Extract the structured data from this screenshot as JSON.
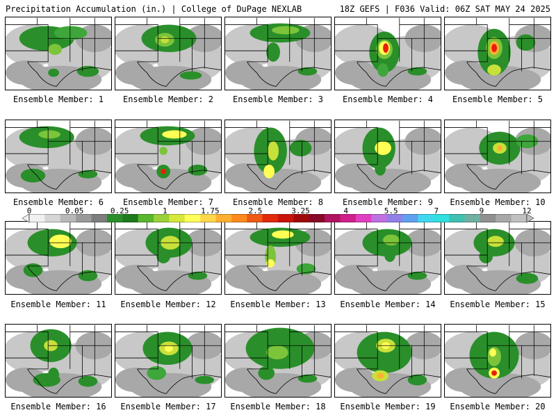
{
  "header": {
    "left": "Precipitation Accumulation (in.) | College of DuPage NEXLAB",
    "right": "18Z GEFS | F036 Valid: 06Z SAT MAY 24 2025"
  },
  "colorbar": {
    "labels": [
      "0",
      "0.05",
      "0.25",
      "1",
      "1.75",
      "2.5",
      "3.25",
      "4",
      "5.5",
      "7",
      "9",
      "12"
    ],
    "colors": [
      "#f0f0f0",
      "#d6d6d6",
      "#b8b8b8",
      "#9a9a9a",
      "#7e7e7e",
      "#2a8f2a",
      "#1e7b1e",
      "#5ab62d",
      "#9bd038",
      "#d6e83a",
      "#ffff5a",
      "#ffd84a",
      "#ffb030",
      "#ff8a1e",
      "#f05a14",
      "#e02a0a",
      "#c8140a",
      "#a00a0a",
      "#880a28",
      "#b01460",
      "#d0208c",
      "#e040c0",
      "#c070e0",
      "#9080e8",
      "#60a0f0",
      "#40d8f0",
      "#30e0e0",
      "#40c0b0",
      "#70b0a0",
      "#909090",
      "#a8a8a8",
      "#c0c0c0"
    ]
  },
  "members": [
    {
      "label": "Ensemble Member: 1"
    },
    {
      "label": "Ensemble Member: 2"
    },
    {
      "label": "Ensemble Member: 3"
    },
    {
      "label": "Ensemble Member: 4"
    },
    {
      "label": "Ensemble Member: 5"
    },
    {
      "label": "Ensemble Member: 6"
    },
    {
      "label": "Ensemble Member: 7"
    },
    {
      "label": "Ensemble Member: 8"
    },
    {
      "label": "Ensemble Member: 9"
    },
    {
      "label": "Ensemble Member: 10"
    },
    {
      "label": "Ensemble Member: 11"
    },
    {
      "label": "Ensemble Member: 12"
    },
    {
      "label": "Ensemble Member: 13"
    },
    {
      "label": "Ensemble Member: 14"
    },
    {
      "label": "Ensemble Member: 15"
    },
    {
      "label": "Ensemble Member: 16"
    },
    {
      "label": "Ensemble Member: 17"
    },
    {
      "label": "Ensemble Member: 18"
    },
    {
      "label": "Ensemble Member: 19"
    },
    {
      "label": "Ensemble Member: 20"
    }
  ]
}
